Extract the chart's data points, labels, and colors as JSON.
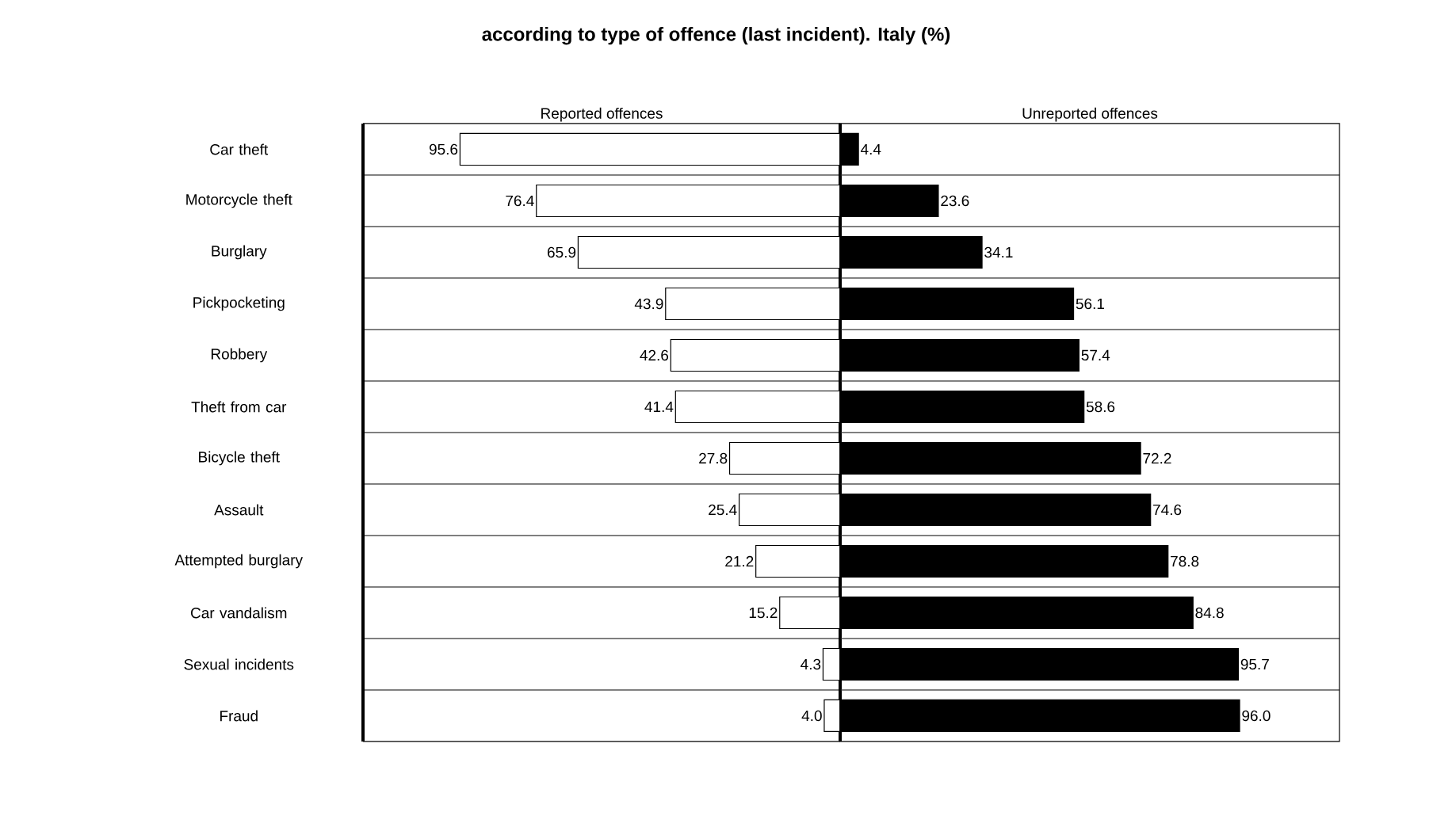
{
  "chart_data": [
    {
      "type": "bar",
      "orientation": "horizontal",
      "title": "according to type of offence (last incident). Italy (%)",
      "categories": [
        "Car theft",
        "Motorcycle theft",
        "Burglary",
        "Pickpocketing",
        "Robbery",
        "Theft from car",
        "Bicycle theft",
        "Assault",
        "Attempted burglary",
        "Car vandalism",
        "Sexual incidents",
        "Fraud"
      ],
      "xlim": [
        120,
        0
      ],
      "grid": "y",
      "tick_labels": "y",
      "series": [
        {
          "name": "Reported offences",
          "color": "#ffffff",
          "values": [
            95.6,
            76.4,
            65.9,
            43.9,
            42.6,
            41.4,
            27.8,
            25.4,
            21.2,
            15.2,
            4.3,
            4.0
          ],
          "value_labels": [
            "95.6",
            "76.4",
            "65.9",
            "43.9",
            "42.6",
            "41.4",
            "27.8",
            "25.4",
            "21.2",
            "15.2",
            "4.3",
            "4.0"
          ]
        }
      ]
    },
    {
      "type": "bar",
      "orientation": "horizontal",
      "categories": [
        null,
        null,
        null,
        null,
        null,
        null,
        null,
        null,
        null,
        null,
        null,
        null
      ],
      "xlim": [
        0,
        120
      ],
      "grid": "y",
      "tick_labels": false,
      "series": [
        {
          "name": "Unreported offences",
          "color": "#000000",
          "values": [
            4.4,
            23.6,
            34.1,
            56.1,
            57.4,
            58.6,
            72.2,
            74.6,
            78.8,
            84.8,
            95.7,
            96.0
          ],
          "value_labels": [
            "4.4",
            "23.6",
            "34.1",
            "56.1",
            "57.4",
            "58.6",
            "72.2",
            "74.6",
            "78.8",
            "84.8",
            "95.7",
            "96.0"
          ]
        }
      ]
    }
  ]
}
